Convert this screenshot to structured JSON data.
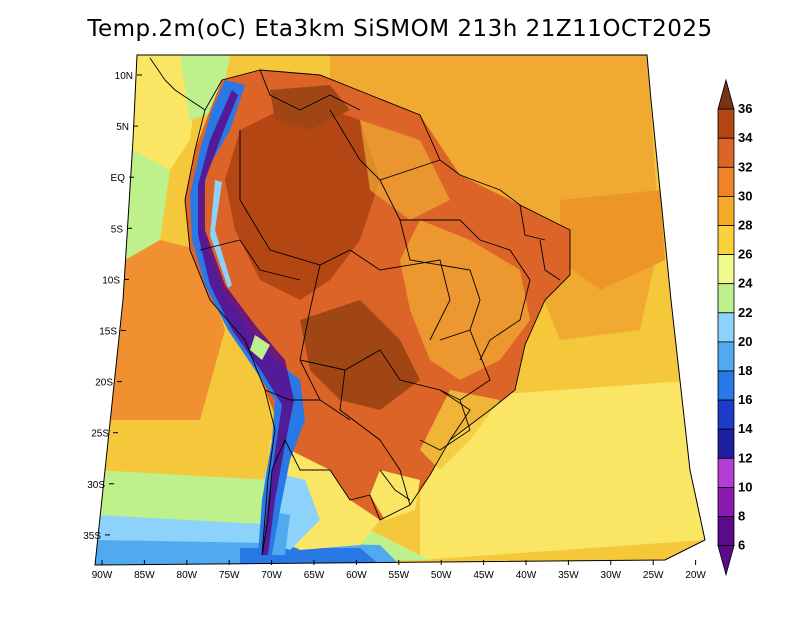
{
  "title": "Temp.2m(oC) Eta3km SiSMOM 213h 21Z11OCT2025",
  "lat_labels": [
    "10N",
    "5N",
    "EQ",
    "5S",
    "10S",
    "15S",
    "20S",
    "25S",
    "30S",
    "35S"
  ],
  "lon_labels": [
    "90W",
    "85W",
    "80W",
    "75W",
    "70W",
    "65W",
    "60W",
    "55W",
    "50W",
    "45W",
    "40W",
    "35W",
    "30W",
    "25W",
    "20W"
  ],
  "colorbar": {
    "labels": [
      "6",
      "8",
      "10",
      "12",
      "14",
      "16",
      "18",
      "20",
      "22",
      "24",
      "26",
      "28",
      "30",
      "32",
      "34",
      "36"
    ],
    "colors": [
      "#5a0a8a",
      "#8a1ab0",
      "#b43cd2",
      "#1e1ea0",
      "#1e3cc8",
      "#2878e6",
      "#50aaf0",
      "#8cd2fa",
      "#bef08c",
      "#f0fa8c",
      "#fad23c",
      "#f5aa28",
      "#f08228",
      "#dc6428",
      "#b44614",
      "#783214"
    ]
  },
  "legend_colors": {
    "ocean_warm": "#f0aa32",
    "ocean_mid": "#f5c83c",
    "ocean_cool": "#fae664",
    "land_hot": "#c85a1e",
    "land_very_hot": "#a04614",
    "andes_cold": "#3c50c8"
  }
}
